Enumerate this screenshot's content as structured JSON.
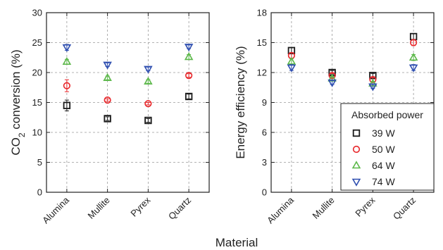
{
  "chart_data": [
    {
      "type": "scatter",
      "xlabel": "",
      "ylabel": "CO2 conversion (%)",
      "ylabel_main": "CO",
      "ylabel_sub": "2",
      "ylabel_rest": " conversion (%)",
      "categories": [
        "Alumina",
        "Mullite",
        "Pyrex",
        "Quartz"
      ],
      "ylim": [
        0,
        30
      ],
      "yticks": [
        "0",
        "5",
        "10",
        "15",
        "20",
        "25",
        "30"
      ],
      "grid": true,
      "series": [
        {
          "name": "39 W",
          "values": [
            14.5,
            12.3,
            12.0,
            16.0
          ],
          "errors": [
            0.9,
            0.3,
            0.3,
            0.4
          ]
        },
        {
          "name": "50 W",
          "values": [
            17.8,
            15.4,
            14.8,
            19.5
          ],
          "errors": [
            1.0,
            0.2,
            0.2,
            0.3
          ]
        },
        {
          "name": "64 W",
          "values": [
            21.8,
            19.1,
            18.5,
            22.6
          ],
          "errors": [
            0.4,
            0.3,
            0.3,
            0.4
          ]
        },
        {
          "name": "74 W",
          "values": [
            24.2,
            21.3,
            20.6,
            24.3
          ],
          "errors": [
            0.5,
            0.3,
            0.3,
            0.3
          ]
        }
      ]
    },
    {
      "type": "scatter",
      "xlabel": "",
      "ylabel": "Energy efficiency (%)",
      "categories": [
        "Alumina",
        "Mullite",
        "Pyrex",
        "Quartz"
      ],
      "ylim": [
        0,
        18
      ],
      "yticks": [
        "0",
        "3",
        "6",
        "9",
        "12",
        "15",
        "18"
      ],
      "grid": true,
      "legend_title": "Absorbed power",
      "legend_position": "bottom-right",
      "series": [
        {
          "name": "39 W",
          "values": [
            14.2,
            12.0,
            11.7,
            15.6
          ],
          "errors": [
            0.3,
            0.2,
            0.2,
            0.3
          ]
        },
        {
          "name": "50 W",
          "values": [
            13.7,
            11.7,
            11.3,
            15.0
          ],
          "errors": [
            0.3,
            0.2,
            0.2,
            0.3
          ]
        },
        {
          "name": "64 W",
          "values": [
            13.1,
            11.4,
            10.9,
            13.5
          ],
          "errors": [
            0.3,
            0.2,
            0.2,
            0.3
          ]
        },
        {
          "name": "74 W",
          "values": [
            12.5,
            11.0,
            10.6,
            12.5
          ],
          "errors": [
            0.3,
            0.2,
            0.2,
            0.3
          ]
        }
      ]
    }
  ],
  "shared_xlabel": "Material",
  "series_colors": [
    "#1a1a1a",
    "#e8262a",
    "#5cb84a",
    "#2f4fb0"
  ],
  "series_markers": [
    "square",
    "circle",
    "triangle-up",
    "triangle-down"
  ]
}
